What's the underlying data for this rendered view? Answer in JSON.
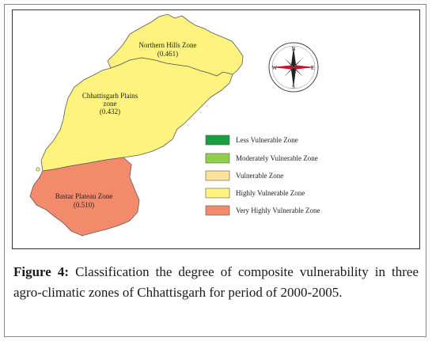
{
  "map": {
    "zones": [
      {
        "name": "Northern Hills Zone",
        "value": "(0.461)",
        "color": "#fef37e"
      },
      {
        "name_lines": [
          "Chhattisgarh Plains",
          "zone"
        ],
        "value": "(0.432)",
        "color": "#fef37e"
      },
      {
        "name": "Bastar Plateau Zone",
        "value": "(0.510)",
        "color": "#f48a6c"
      }
    ],
    "compass": {
      "n": "N",
      "s": "S",
      "e": "E",
      "w": "W"
    },
    "legend": [
      {
        "label": "Less Vulnerable Zone",
        "color": "#1aa042"
      },
      {
        "label": "Moderately Vulnerable Zone",
        "color": "#8fd14f"
      },
      {
        "label": "Vulnerable Zone",
        "color": "#fde29a"
      },
      {
        "label": "Highly Vulnerable Zone",
        "color": "#fef37e"
      },
      {
        "label": "Very Highly Vulnerable Zone",
        "color": "#f48a6c"
      }
    ]
  },
  "caption": {
    "label": "Figure 4:",
    "text": "Classification the degree of composite vulnerability in three agro-climatic zones of Chhattisgarh for period of 2000-2005."
  }
}
